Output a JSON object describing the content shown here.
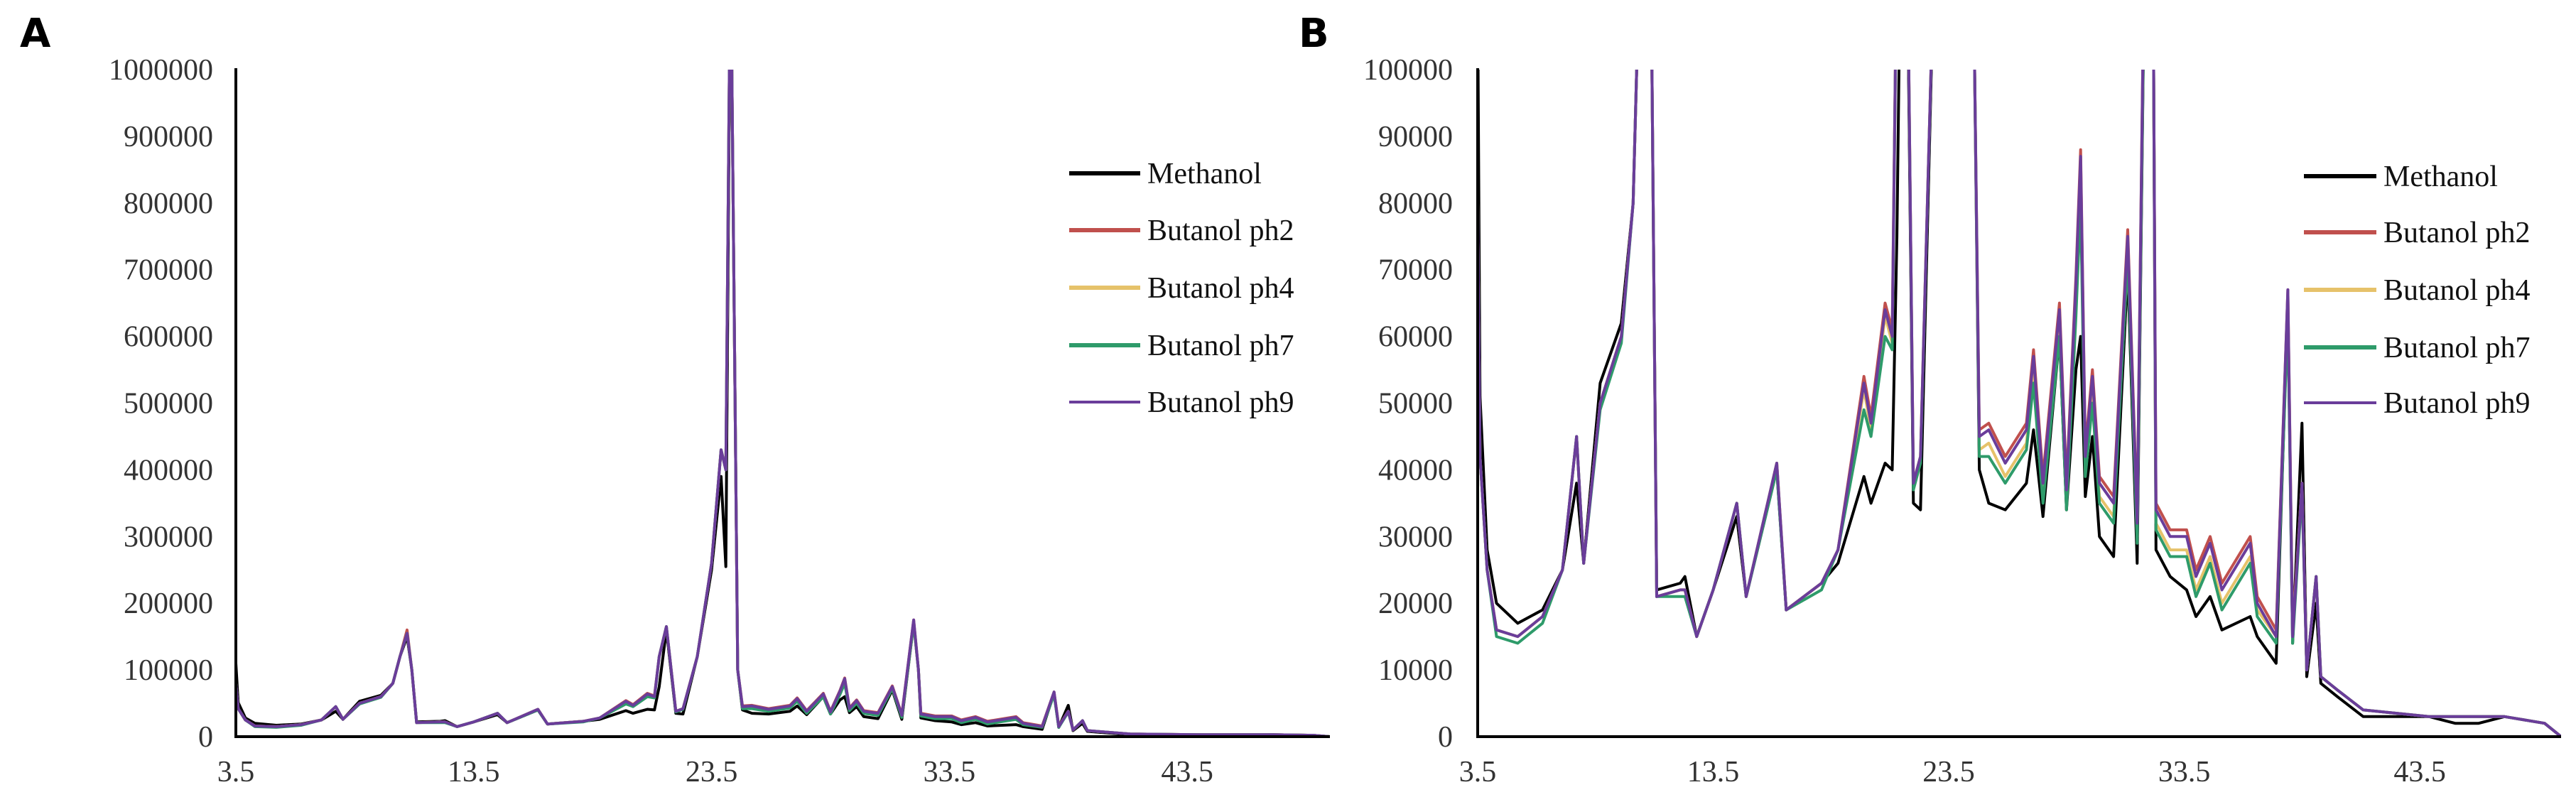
{
  "chart_data": {
    "type": "line",
    "xlabel": "",
    "ylabel": "",
    "grid": false,
    "legend_position": "top-right",
    "xlim": [
      3.5,
      49.5
    ],
    "xtick_labels": [
      "3.5",
      "13.5",
      "23.5",
      "33.5",
      "43.5"
    ],
    "x": [
      3.5,
      3.6,
      3.9,
      4.3,
      5.2,
      6.25,
      7.1,
      7.7,
      8.0,
      8.7,
      9.6,
      10.1,
      10.4,
      10.7,
      10.9,
      11.1,
      12.1,
      12.3,
      12.8,
      13.5,
      14.5,
      14.9,
      16.2,
      16.6,
      18.1,
      18.8,
      19.9,
      20.2,
      20.8,
      21.1,
      21.3,
      21.6,
      22.0,
      22.3,
      22.9,
      23.5,
      23.9,
      24.1,
      24.3,
      24.6,
      24.8,
      25.2,
      25.9,
      26.8,
      27.1,
      27.5,
      28.2,
      28.5,
      28.9,
      29.1,
      29.3,
      29.6,
      29.9,
      30.5,
      31.1,
      31.5,
      32.0,
      32.2,
      32.3,
      32.9,
      33.6,
      34.0,
      34.6,
      35.1,
      36.3,
      36.6,
      37.4,
      37.9,
      38.1,
      38.5,
      38.7,
      39.1,
      39.3,
      40.0,
      41.1,
      43.9,
      45.0,
      46.0,
      47.1,
      48.8,
      49.5
    ],
    "series": [
      {
        "name": "Methanol",
        "color": "#000000",
        "values": [
          110000,
          51000,
          28000,
          20000,
          17000,
          19000,
          25000,
          38000,
          26000,
          53000,
          62000,
          80000,
          120000,
          150000,
          100000,
          22000,
          23000,
          24000,
          15000,
          22000,
          33000,
          21000,
          40000,
          19000,
          23000,
          26000,
          39000,
          35000,
          41000,
          40000,
          75000,
          160000,
          35000,
          34000,
          120000,
          250000,
          390000,
          255000,
          1200000,
          100000,
          40000,
          35000,
          34000,
          38000,
          46000,
          33000,
          60000,
          34000,
          55000,
          60000,
          36000,
          45000,
          30000,
          27000,
          70000,
          26000,
          170000,
          100000,
          28000,
          24000,
          22000,
          18000,
          21000,
          16000,
          18000,
          15000,
          11000,
          65000,
          14000,
          47000,
          9000,
          20000,
          8000,
          6000,
          3000,
          3000,
          2000,
          2000,
          3000,
          2000,
          0
        ]
      },
      {
        "name": "Butanol ph2",
        "color": "#c0504d",
        "values": [
          80000,
          42000,
          25000,
          16000,
          15000,
          18000,
          25000,
          45000,
          26000,
          50000,
          60000,
          80000,
          120000,
          160000,
          100000,
          21000,
          22000,
          22000,
          15000,
          22000,
          35000,
          21000,
          41000,
          19000,
          23000,
          28000,
          54000,
          48000,
          65000,
          61000,
          120000,
          165000,
          38000,
          42000,
          120000,
          260000,
          430000,
          400000,
          1200000,
          100000,
          46000,
          47000,
          42000,
          47000,
          58000,
          39000,
          65000,
          38000,
          69000,
          88000,
          43000,
          55000,
          39000,
          36000,
          76000,
          33000,
          175000,
          100000,
          35000,
          31000,
          31000,
          25000,
          30000,
          23000,
          30000,
          21000,
          16000,
          67000,
          16000,
          38000,
          10000,
          24000,
          9000,
          7000,
          4000,
          3000,
          3000,
          3000,
          3000,
          2000,
          0
        ]
      },
      {
        "name": "Butanol ph4",
        "color": "#e6c26a",
        "values": [
          80000,
          42000,
          25000,
          16000,
          15000,
          18000,
          25000,
          45000,
          26000,
          50000,
          60000,
          80000,
          120000,
          155000,
          100000,
          21000,
          22000,
          22000,
          15000,
          22000,
          35000,
          21000,
          41000,
          19000,
          23000,
          28000,
          52000,
          46000,
          63000,
          59000,
          120000,
          165000,
          38000,
          42000,
          120000,
          260000,
          430000,
          400000,
          1200000,
          100000,
          43000,
          44000,
          39000,
          44000,
          55000,
          36000,
          62000,
          35000,
          64000,
          82000,
          40000,
          51000,
          36000,
          33000,
          72000,
          30000,
          170000,
          100000,
          32000,
          28000,
          28000,
          22000,
          27000,
          20000,
          27000,
          19000,
          15000,
          66000,
          15000,
          38000,
          10000,
          24000,
          9000,
          7000,
          4000,
          3000,
          3000,
          3000,
          3000,
          2000,
          0
        ]
      },
      {
        "name": "Butanol ph7",
        "color": "#2e9b6a",
        "values": [
          80000,
          42000,
          25000,
          15000,
          14000,
          17000,
          25000,
          45000,
          26000,
          49000,
          59000,
          80000,
          120000,
          155000,
          100000,
          21000,
          21000,
          21000,
          15000,
          22000,
          35000,
          21000,
          40000,
          19000,
          22000,
          28000,
          49000,
          45000,
          60000,
          58000,
          120000,
          165000,
          37000,
          41000,
          120000,
          260000,
          430000,
          400000,
          1200000,
          100000,
          42000,
          42000,
          38000,
          43000,
          53000,
          35000,
          60000,
          34000,
          63000,
          80000,
          39000,
          50000,
          35000,
          32000,
          72000,
          29000,
          170000,
          100000,
          31000,
          27000,
          27000,
          21000,
          26000,
          19000,
          26000,
          18000,
          14000,
          63000,
          14000,
          37000,
          10000,
          24000,
          9000,
          7000,
          4000,
          3000,
          3000,
          3000,
          3000,
          2000,
          0
        ]
      },
      {
        "name": "Butanol ph9",
        "color": "#6a3d9a",
        "values": [
          80000,
          42000,
          25000,
          16000,
          15000,
          18000,
          25000,
          45000,
          26000,
          50000,
          60000,
          80000,
          120000,
          155000,
          100000,
          21000,
          22000,
          22000,
          15000,
          22000,
          35000,
          21000,
          41000,
          19000,
          23000,
          28000,
          53000,
          47000,
          64000,
          60000,
          120000,
          165000,
          38000,
          42000,
          120000,
          260000,
          430000,
          400000,
          1200000,
          100000,
          45000,
          46000,
          41000,
          46000,
          57000,
          38000,
          64000,
          37000,
          68000,
          87000,
          42000,
          54000,
          38000,
          35000,
          75000,
          32000,
          175000,
          100000,
          34000,
          30000,
          30000,
          24000,
          29000,
          22000,
          29000,
          20000,
          15000,
          67000,
          15000,
          38000,
          10000,
          24000,
          9000,
          7000,
          4000,
          3000,
          3000,
          3000,
          3000,
          2000,
          0
        ]
      }
    ],
    "panels": [
      {
        "label": "A",
        "ylim": [
          0,
          1000000
        ],
        "ytick_labels": [
          "0",
          "100000",
          "200000",
          "300000",
          "400000",
          "500000",
          "600000",
          "700000",
          "800000",
          "900000",
          "1000000"
        ]
      },
      {
        "label": "B",
        "ylim": [
          0,
          100000
        ],
        "ytick_labels": [
          "0",
          "10000",
          "20000",
          "30000",
          "40000",
          "50000",
          "60000",
          "70000",
          "80000",
          "90000",
          "100000"
        ]
      }
    ]
  }
}
